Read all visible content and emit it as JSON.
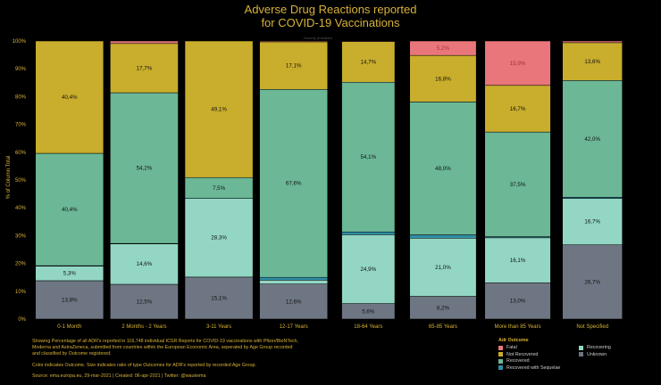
{
  "title_line1": "Adverse Drug Reactions reported",
  "title_line2": "for COVID-19 Vaccinations",
  "watermark": "Dummy (Invisible)",
  "y_axis_title": "% of Column Total",
  "footer": {
    "line1": "Showing Percentage of all ADR's reported in 116,748 individual ICSR Reports for COVID-19 vaccinations with Pfizer/BioNTech,",
    "line2": "Moderna and AstraZeneca, submitted from countries within the European Economic Area, seperated by Age Group recorded",
    "line3": "and classified by Outcome registered.",
    "line4": "Color indicates Outcome. Size indicates ratio of type Outcomes for ADR's reported by recorded Age Group.",
    "line5": "Source: ema.europa.eu, 29-mar-2021 | Created: 06-apr-2021 | Twitter: @waukema"
  },
  "legend": {
    "title": "Adr Outcome",
    "items": [
      {
        "label": "Fatal",
        "color": "#e8767a"
      },
      {
        "label": "Recovering",
        "color": "#93d6c4"
      },
      {
        "label": "Not Recovered",
        "color": "#c9ad2c"
      },
      {
        "label": "Unknown",
        "color": "#6f7683"
      },
      {
        "label": "Recovered",
        "color": "#6bb796"
      },
      {
        "label": "",
        "color": ""
      },
      {
        "label": "Recovered with Sequelae",
        "color": "#2e8fa6"
      },
      {
        "label": "",
        "color": ""
      }
    ]
  },
  "chart_data": {
    "type": "bar",
    "stacked": true,
    "normalized_percent": true,
    "ylabel": "% of Column Total",
    "ylim": [
      0,
      100
    ],
    "yticks": [
      "0%",
      "10%",
      "20%",
      "30%",
      "40%",
      "50%",
      "60%",
      "70%",
      "80%",
      "90%",
      "100%"
    ],
    "categories": [
      "0-1 Month",
      "2 Months - 2 Years",
      "3-11 Years",
      "12-17 Years",
      "18-64 Years",
      "65-85 Years",
      "More than 85 Years",
      "Not Specified"
    ],
    "series": [
      {
        "name": "Unknown",
        "color": "#6f7683",
        "values": [
          13.8,
          12.5,
          15.1,
          12.6,
          5.6,
          8.2,
          13.0,
          26.7
        ],
        "labels": [
          "13,8%",
          "12,5%",
          "15,1%",
          "12,6%",
          "5,6%",
          "8,2%",
          "13,0%",
          "26,7%"
        ]
      },
      {
        "name": "Recovering",
        "color": "#93d6c4",
        "values": [
          5.3,
          14.6,
          28.3,
          1.4,
          24.9,
          21.0,
          16.1,
          16.7
        ],
        "labels": [
          "5,3%",
          "14,6%",
          "28,3%",
          "",
          "24,9%",
          "21,0%",
          "16,1%",
          "16,7%"
        ]
      },
      {
        "name": "Recovered with Sequelae",
        "color": "#2e8fa6",
        "values": [
          0.1,
          0.1,
          0.0,
          1.0,
          1.0,
          1.2,
          0.4,
          0.4
        ],
        "labels": [
          "",
          "",
          "",
          "",
          "",
          "",
          "",
          ""
        ]
      },
      {
        "name": "Recovered",
        "color": "#6bb796",
        "values": [
          40.4,
          54.2,
          7.5,
          67.6,
          54.1,
          48.0,
          37.5,
          42.0
        ],
        "labels": [
          "40,4%",
          "54,2%",
          "7,5%",
          "67,6%",
          "54,1%",
          "48,0%",
          "37,5%",
          "42,0%"
        ]
      },
      {
        "name": "Not Recovered",
        "color": "#c9ad2c",
        "values": [
          40.4,
          17.7,
          49.1,
          17.1,
          14.7,
          16.8,
          16.7,
          13.6
        ],
        "labels": [
          "40,4%",
          "17,7%",
          "49,1%",
          "17,1%",
          "14,7%",
          "16,8%",
          "16,7%",
          "13,6%"
        ]
      },
      {
        "name": "Fatal",
        "color": "#e8767a",
        "values": [
          0.0,
          0.9,
          0.0,
          0.3,
          0.2,
          5.2,
          15.9,
          0.6
        ],
        "labels": [
          "",
          "",
          "",
          "",
          "",
          "5,2%",
          "15,9%",
          ""
        ]
      }
    ],
    "bar_widths": [
      0.91,
      0.91,
      0.91,
      0.91,
      0.71,
      0.89,
      0.88,
      0.8
    ]
  }
}
